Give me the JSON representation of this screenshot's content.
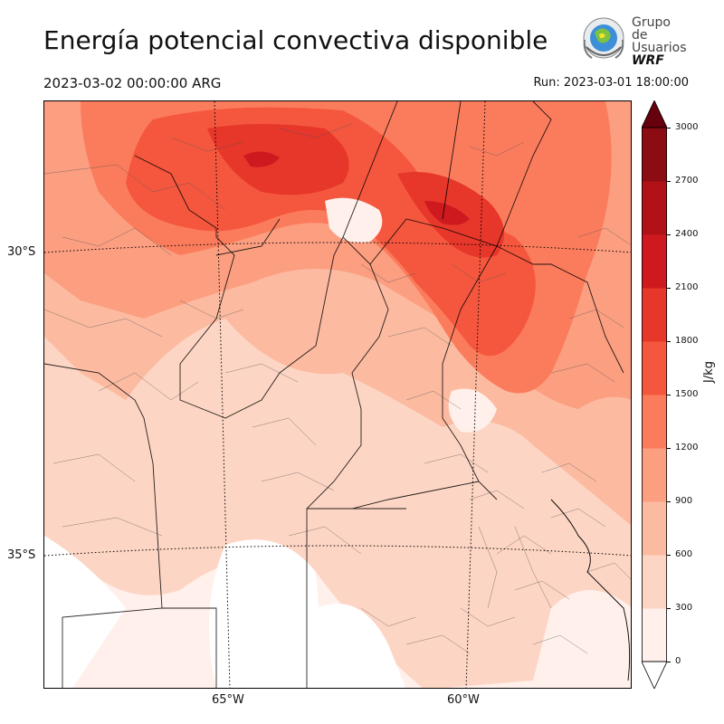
{
  "header": {
    "title": "Energía potencial convectiva disponible",
    "valid_time": "2023-03-02 00:00:00 ARG",
    "run": "Run: 2023-03-01 18:00:00"
  },
  "logo": {
    "line1": "Grupo de",
    "line2": "Usuarios",
    "line3": "WRF"
  },
  "map": {
    "variable": "CAPE",
    "lat_labels": [
      "30°S",
      "35°S"
    ],
    "lon_labels": [
      "65°W",
      "60°W"
    ],
    "features": [
      "province-borders",
      "department-borders",
      "country-borders",
      "lat-lon-graticule"
    ]
  },
  "colorbar": {
    "unit": "J/kg",
    "ticks": [
      "3000",
      "2700",
      "2400",
      "2100",
      "1800",
      "1500",
      "1200",
      "900",
      "600",
      "300",
      "0"
    ],
    "bins": [
      0,
      300,
      600,
      900,
      1200,
      1500,
      1800,
      2100,
      2400,
      2700,
      3000
    ],
    "colors": [
      "#fff0eb",
      "#fdd5c4",
      "#fcbba1",
      "#fc9e80",
      "#fb7c5c",
      "#f5573e",
      "#e7362a",
      "#ce1a1e",
      "#b01217",
      "#8c0c14",
      "#67000d"
    ],
    "extend": "both"
  }
}
